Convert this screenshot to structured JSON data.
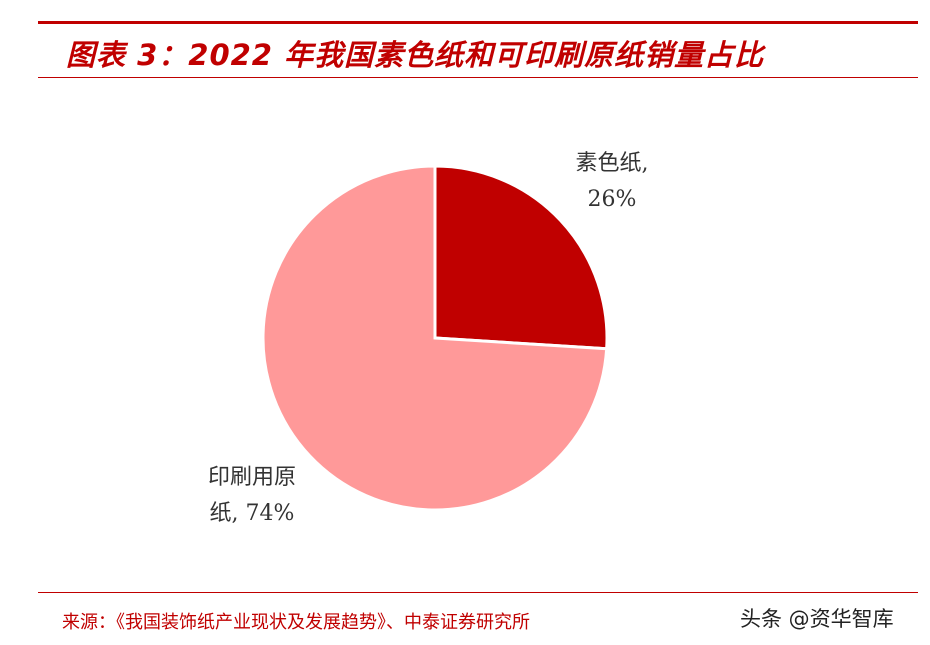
{
  "header": {
    "title": "图表 3：2022 年我国素色纸和可印刷原纸销量占比"
  },
  "chart_data": {
    "type": "pie",
    "categories": [
      "素色纸",
      "印刷用原纸"
    ],
    "values": [
      26,
      74
    ],
    "unit": "%",
    "colors": [
      "#c00000",
      "#ff9999"
    ],
    "labels": [
      [
        "素色纸,",
        "26%"
      ],
      [
        "印刷用原",
        "纸, 74%"
      ]
    ]
  },
  "footer": {
    "source": "来源：《我国装饰纸产业现状及发展趋势》、中泰证券研究所",
    "watermark": "头条 @资华智库"
  }
}
